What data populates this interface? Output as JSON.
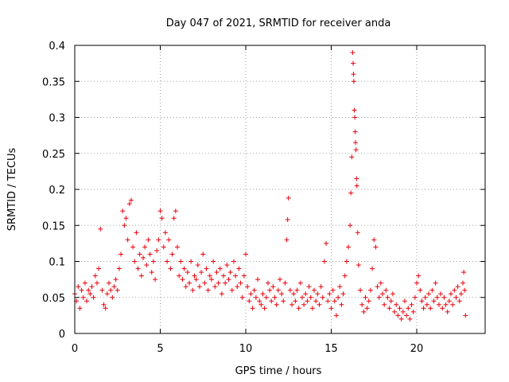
{
  "chart_data": {
    "type": "scatter",
    "title": "Day 047 of 2021, SRMTID for receiver anda",
    "xlabel": "GPS time / hours",
    "ylabel": "SRMTID / TECUs",
    "xlim": [
      0,
      24
    ],
    "ylim": [
      0,
      0.4
    ],
    "x_ticks": [
      0,
      5,
      10,
      15,
      20
    ],
    "x_tick_labels": [
      "0",
      "5",
      "10",
      "15",
      "20"
    ],
    "y_ticks": [
      0,
      0.05,
      0.1,
      0.15,
      0.2,
      0.25,
      0.3,
      0.35,
      0.4
    ],
    "y_tick_labels": [
      "0",
      "0.05",
      "0.1",
      "0.15",
      "0.2",
      "0.25",
      "0.3",
      "0.35",
      "0.4"
    ],
    "grid": true,
    "marker": "plus",
    "color": "#e8000b",
    "series": [
      {
        "name": "SRMTID",
        "points": [
          [
            0.0,
            0.055
          ],
          [
            0.1,
            0.045
          ],
          [
            0.2,
            0.065
          ],
          [
            0.3,
            0.035
          ],
          [
            0.4,
            0.06
          ],
          [
            0.5,
            0.05
          ],
          [
            0.6,
            0.07
          ],
          [
            0.7,
            0.045
          ],
          [
            0.8,
            0.06
          ],
          [
            0.9,
            0.055
          ],
          [
            1.0,
            0.065
          ],
          [
            1.1,
            0.05
          ],
          [
            1.2,
            0.08
          ],
          [
            1.3,
            0.07
          ],
          [
            1.4,
            0.09
          ],
          [
            1.5,
            0.145
          ],
          [
            1.6,
            0.06
          ],
          [
            1.7,
            0.04
          ],
          [
            1.8,
            0.035
          ],
          [
            1.9,
            0.055
          ],
          [
            2.0,
            0.07
          ],
          [
            2.1,
            0.06
          ],
          [
            2.2,
            0.05
          ],
          [
            2.3,
            0.065
          ],
          [
            2.4,
            0.075
          ],
          [
            2.5,
            0.06
          ],
          [
            2.6,
            0.09
          ],
          [
            2.7,
            0.11
          ],
          [
            2.8,
            0.17
          ],
          [
            2.9,
            0.15
          ],
          [
            3.0,
            0.16
          ],
          [
            3.1,
            0.13
          ],
          [
            3.2,
            0.18
          ],
          [
            3.3,
            0.185
          ],
          [
            3.4,
            0.12
          ],
          [
            3.5,
            0.1
          ],
          [
            3.6,
            0.14
          ],
          [
            3.7,
            0.09
          ],
          [
            3.8,
            0.11
          ],
          [
            3.9,
            0.08
          ],
          [
            4.0,
            0.105
          ],
          [
            4.1,
            0.12
          ],
          [
            4.2,
            0.095
          ],
          [
            4.3,
            0.13
          ],
          [
            4.4,
            0.11
          ],
          [
            4.5,
            0.085
          ],
          [
            4.6,
            0.1
          ],
          [
            4.7,
            0.075
          ],
          [
            4.8,
            0.115
          ],
          [
            4.9,
            0.13
          ],
          [
            5.0,
            0.17
          ],
          [
            5.1,
            0.16
          ],
          [
            5.2,
            0.12
          ],
          [
            5.3,
            0.14
          ],
          [
            5.4,
            0.1
          ],
          [
            5.5,
            0.13
          ],
          [
            5.6,
            0.09
          ],
          [
            5.7,
            0.11
          ],
          [
            5.8,
            0.16
          ],
          [
            5.9,
            0.17
          ],
          [
            6.0,
            0.12
          ],
          [
            6.1,
            0.08
          ],
          [
            6.2,
            0.1
          ],
          [
            6.3,
            0.075
          ],
          [
            6.4,
            0.09
          ],
          [
            6.5,
            0.065
          ],
          [
            6.6,
            0.085
          ],
          [
            6.7,
            0.07
          ],
          [
            6.8,
            0.1
          ],
          [
            6.9,
            0.06
          ],
          [
            7.0,
            0.08
          ],
          [
            7.1,
            0.075
          ],
          [
            7.2,
            0.095
          ],
          [
            7.3,
            0.065
          ],
          [
            7.4,
            0.085
          ],
          [
            7.5,
            0.11
          ],
          [
            7.6,
            0.07
          ],
          [
            7.7,
            0.09
          ],
          [
            7.8,
            0.06
          ],
          [
            7.9,
            0.08
          ],
          [
            8.0,
            0.075
          ],
          [
            8.1,
            0.1
          ],
          [
            8.2,
            0.065
          ],
          [
            8.3,
            0.085
          ],
          [
            8.4,
            0.07
          ],
          [
            8.5,
            0.09
          ],
          [
            8.6,
            0.055
          ],
          [
            8.7,
            0.08
          ],
          [
            8.8,
            0.07
          ],
          [
            8.9,
            0.095
          ],
          [
            9.0,
            0.075
          ],
          [
            9.1,
            0.085
          ],
          [
            9.2,
            0.06
          ],
          [
            9.3,
            0.1
          ],
          [
            9.4,
            0.08
          ],
          [
            9.5,
            0.065
          ],
          [
            9.6,
            0.09
          ],
          [
            9.7,
            0.07
          ],
          [
            9.8,
            0.05
          ],
          [
            9.9,
            0.08
          ],
          [
            10.0,
            0.11
          ],
          [
            10.1,
            0.065
          ],
          [
            10.2,
            0.045
          ],
          [
            10.3,
            0.055
          ],
          [
            10.4,
            0.035
          ],
          [
            10.5,
            0.06
          ],
          [
            10.6,
            0.05
          ],
          [
            10.7,
            0.075
          ],
          [
            10.8,
            0.045
          ],
          [
            10.9,
            0.04
          ],
          [
            11.0,
            0.055
          ],
          [
            11.1,
            0.035
          ],
          [
            11.2,
            0.05
          ],
          [
            11.3,
            0.07
          ],
          [
            11.4,
            0.06
          ],
          [
            11.5,
            0.045
          ],
          [
            11.6,
            0.065
          ],
          [
            11.7,
            0.05
          ],
          [
            11.8,
            0.04
          ],
          [
            11.9,
            0.06
          ],
          [
            12.0,
            0.075
          ],
          [
            12.1,
            0.055
          ],
          [
            12.2,
            0.045
          ],
          [
            12.3,
            0.07
          ],
          [
            12.4,
            0.13
          ],
          [
            12.45,
            0.158
          ],
          [
            12.5,
            0.188
          ],
          [
            12.6,
            0.06
          ],
          [
            12.7,
            0.04
          ],
          [
            12.8,
            0.055
          ],
          [
            12.9,
            0.045
          ],
          [
            13.0,
            0.06
          ],
          [
            13.1,
            0.035
          ],
          [
            13.2,
            0.07
          ],
          [
            13.3,
            0.05
          ],
          [
            13.4,
            0.04
          ],
          [
            13.5,
            0.055
          ],
          [
            13.6,
            0.045
          ],
          [
            13.7,
            0.065
          ],
          [
            13.8,
            0.05
          ],
          [
            13.9,
            0.035
          ],
          [
            14.0,
            0.06
          ],
          [
            14.1,
            0.045
          ],
          [
            14.2,
            0.055
          ],
          [
            14.3,
            0.04
          ],
          [
            14.4,
            0.065
          ],
          [
            14.5,
            0.05
          ],
          [
            14.6,
            0.1
          ],
          [
            14.7,
            0.125
          ],
          [
            14.8,
            0.045
          ],
          [
            14.9,
            0.055
          ],
          [
            15.0,
            0.035
          ],
          [
            15.1,
            0.06
          ],
          [
            15.2,
            0.045
          ],
          [
            15.3,
            0.025
          ],
          [
            15.4,
            0.05
          ],
          [
            15.5,
            0.065
          ],
          [
            15.6,
            0.04
          ],
          [
            15.7,
            0.055
          ],
          [
            15.8,
            0.08
          ],
          [
            15.9,
            0.1
          ],
          [
            16.0,
            0.12
          ],
          [
            16.1,
            0.15
          ],
          [
            16.15,
            0.195
          ],
          [
            16.2,
            0.245
          ],
          [
            16.25,
            0.39
          ],
          [
            16.28,
            0.375
          ],
          [
            16.3,
            0.36
          ],
          [
            16.32,
            0.35
          ],
          [
            16.35,
            0.31
          ],
          [
            16.38,
            0.3
          ],
          [
            16.4,
            0.28
          ],
          [
            16.42,
            0.265
          ],
          [
            16.45,
            0.255
          ],
          [
            16.48,
            0.215
          ],
          [
            16.5,
            0.205
          ],
          [
            16.55,
            0.14
          ],
          [
            16.6,
            0.095
          ],
          [
            16.7,
            0.06
          ],
          [
            16.8,
            0.04
          ],
          [
            16.9,
            0.03
          ],
          [
            17.0,
            0.05
          ],
          [
            17.1,
            0.035
          ],
          [
            17.2,
            0.045
          ],
          [
            17.3,
            0.06
          ],
          [
            17.4,
            0.09
          ],
          [
            17.5,
            0.13
          ],
          [
            17.6,
            0.12
          ],
          [
            17.7,
            0.065
          ],
          [
            17.8,
            0.05
          ],
          [
            17.9,
            0.07
          ],
          [
            18.0,
            0.055
          ],
          [
            18.1,
            0.04
          ],
          [
            18.2,
            0.06
          ],
          [
            18.3,
            0.05
          ],
          [
            18.4,
            0.035
          ],
          [
            18.5,
            0.045
          ],
          [
            18.6,
            0.055
          ],
          [
            18.7,
            0.03
          ],
          [
            18.8,
            0.04
          ],
          [
            18.9,
            0.025
          ],
          [
            19.0,
            0.035
          ],
          [
            19.1,
            0.02
          ],
          [
            19.2,
            0.03
          ],
          [
            19.3,
            0.045
          ],
          [
            19.4,
            0.025
          ],
          [
            19.5,
            0.035
          ],
          [
            19.6,
            0.02
          ],
          [
            19.7,
            0.04
          ],
          [
            19.8,
            0.03
          ],
          [
            19.9,
            0.05
          ],
          [
            20.0,
            0.07
          ],
          [
            20.1,
            0.08
          ],
          [
            20.2,
            0.06
          ],
          [
            20.3,
            0.045
          ],
          [
            20.4,
            0.035
          ],
          [
            20.5,
            0.05
          ],
          [
            20.6,
            0.04
          ],
          [
            20.7,
            0.055
          ],
          [
            20.8,
            0.035
          ],
          [
            20.9,
            0.06
          ],
          [
            21.0,
            0.045
          ],
          [
            21.1,
            0.07
          ],
          [
            21.2,
            0.05
          ],
          [
            21.3,
            0.04
          ],
          [
            21.4,
            0.055
          ],
          [
            21.5,
            0.035
          ],
          [
            21.6,
            0.05
          ],
          [
            21.7,
            0.04
          ],
          [
            21.8,
            0.03
          ],
          [
            21.9,
            0.045
          ],
          [
            22.0,
            0.055
          ],
          [
            22.1,
            0.04
          ],
          [
            22.2,
            0.06
          ],
          [
            22.3,
            0.05
          ],
          [
            22.4,
            0.065
          ],
          [
            22.5,
            0.045
          ],
          [
            22.6,
            0.055
          ],
          [
            22.7,
            0.07
          ],
          [
            22.75,
            0.085
          ],
          [
            22.8,
            0.06
          ],
          [
            22.85,
            0.025
          ]
        ]
      }
    ]
  }
}
